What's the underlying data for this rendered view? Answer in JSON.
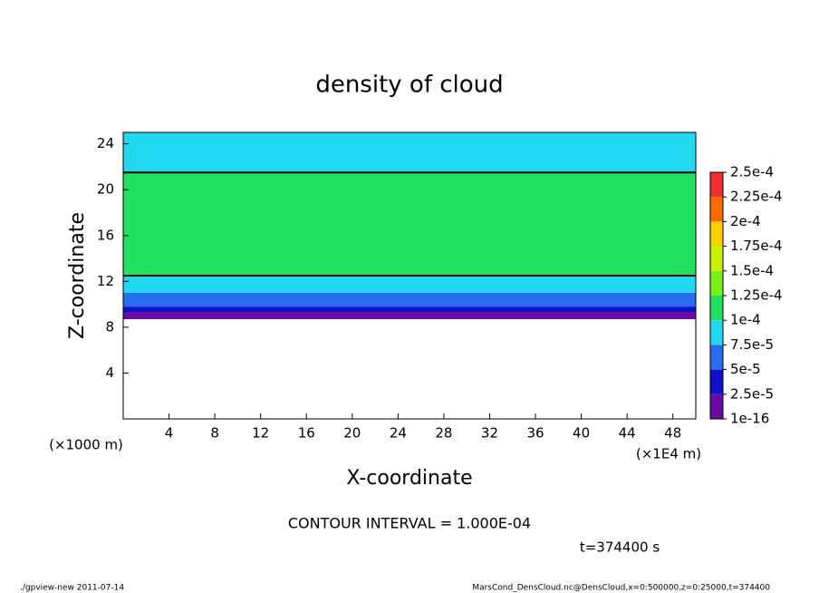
{
  "chart_data": {
    "type": "heatmap",
    "title": "density of cloud",
    "xlabel": "X-coordinate",
    "ylabel": "Z-coordinate",
    "xunit": "(×1E4 m)",
    "yunit": "(×1000 m)",
    "xlim": [
      0,
      50
    ],
    "ylim": [
      0,
      25
    ],
    "xticks": [
      4,
      8,
      12,
      16,
      20,
      24,
      28,
      32,
      36,
      40,
      44,
      48
    ],
    "yticks": [
      4,
      8,
      12,
      16,
      20,
      24
    ],
    "z_edges": [
      8.7,
      9.3,
      9.8,
      11,
      12.5,
      21.5,
      25
    ],
    "values": [
      1e-05,
      3e-05,
      6e-05,
      8.5e-05,
      0.00011,
      9e-05
    ],
    "contour_level": 0.0001,
    "levels": [
      {
        "value": 1e-16,
        "label": "1e-16"
      },
      {
        "value": 2.5e-05,
        "label": "2.5e-5"
      },
      {
        "value": 5e-05,
        "label": "5e-5"
      },
      {
        "value": 7.5e-05,
        "label": "7.5e-5"
      },
      {
        "value": 0.0001,
        "label": "1e-4"
      },
      {
        "value": 0.000125,
        "label": "1.25e-4"
      },
      {
        "value": 0.00015,
        "label": "1.5e-4"
      },
      {
        "value": 0.000175,
        "label": "1.75e-4"
      },
      {
        "value": 0.0002,
        "label": "2e-4"
      },
      {
        "value": 0.000225,
        "label": "2.25e-4"
      },
      {
        "value": 0.00025,
        "label": "2.5e-4"
      }
    ],
    "colors": [
      "#6a0aa0",
      "#1010c8",
      "#2a6cf0",
      "#22d8f0",
      "#22e060",
      "#7af01a",
      "#c8f000",
      "#ffd000",
      "#ff6a00",
      "#f03030"
    ],
    "contour_interval": "CONTOUR INTERVAL = 1.000E-04",
    "time_label": "t=374400 s",
    "footer_left": "./gpview-new  2011-07-14",
    "footer_right": "MarsCond_DensCloud.nc@DensCloud,x=0:500000,z=0:25000,t=374400"
  }
}
